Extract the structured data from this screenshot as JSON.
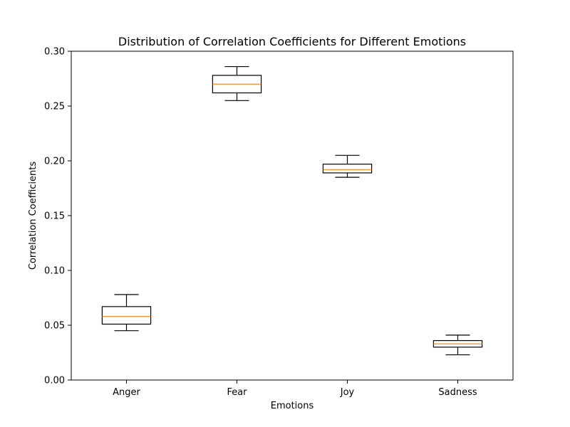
{
  "chart_data": {
    "type": "box",
    "title": "Distribution of Correlation Coefficients for Different Emotions",
    "xlabel": "Emotions",
    "ylabel": "Correlation Coefficients",
    "ylim": [
      0.0,
      0.3
    ],
    "yticks": [
      0.0,
      0.05,
      0.1,
      0.15,
      0.2,
      0.25,
      0.3
    ],
    "ytick_labels": [
      "0.00",
      "0.05",
      "0.10",
      "0.15",
      "0.20",
      "0.25",
      "0.30"
    ],
    "categories": [
      "Anger",
      "Fear",
      "Joy",
      "Sadness"
    ],
    "boxes": [
      {
        "category": "Anger",
        "whislo": 0.045,
        "q1": 0.051,
        "med": 0.058,
        "q3": 0.067,
        "whishi": 0.078
      },
      {
        "category": "Fear",
        "whislo": 0.255,
        "q1": 0.262,
        "med": 0.27,
        "q3": 0.278,
        "whishi": 0.286
      },
      {
        "category": "Joy",
        "whislo": 0.185,
        "q1": 0.189,
        "med": 0.192,
        "q3": 0.197,
        "whishi": 0.205
      },
      {
        "category": "Sadness",
        "whislo": 0.023,
        "q1": 0.03,
        "med": 0.033,
        "q3": 0.036,
        "whishi": 0.041
      }
    ],
    "grid": false,
    "colors": {
      "box": "#000000",
      "median": "#ff7f0e"
    }
  }
}
